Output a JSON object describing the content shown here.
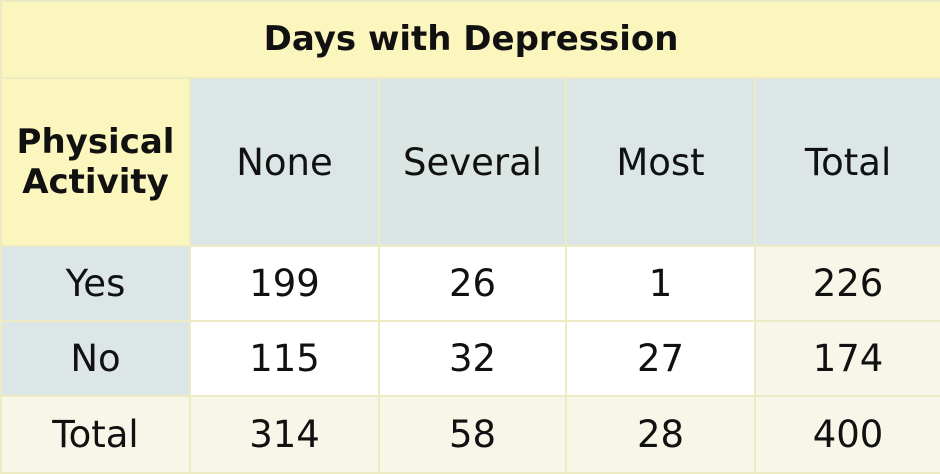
{
  "table": {
    "title": "Days with Depression",
    "corner_label_line1": "Physical",
    "corner_label_line2": "Activity",
    "columns": [
      "None",
      "Several",
      "Most",
      "Total"
    ],
    "rows": [
      {
        "label": "Yes",
        "values": [
          "199",
          "26",
          "1",
          "226"
        ]
      },
      {
        "label": "No",
        "values": [
          "115",
          "32",
          "27",
          "174"
        ]
      },
      {
        "label": "Total",
        "values": [
          "314",
          "58",
          "28",
          "400"
        ]
      }
    ]
  },
  "colors": {
    "title_bg": "#fbf6be",
    "header_bg": "#dce6e6",
    "total_bg": "#f7f6e9",
    "border": "#ecebc4"
  }
}
